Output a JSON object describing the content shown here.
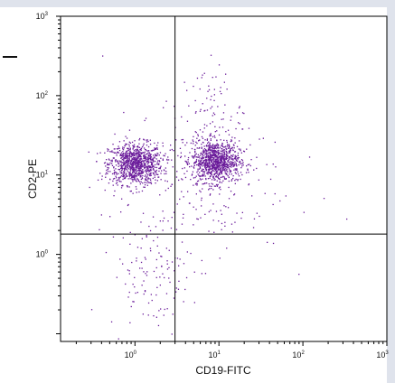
{
  "chart_data": {
    "type": "scatter",
    "xlabel": "CD19-FITC",
    "ylabel": "CD2-PE",
    "x_scale": "log",
    "y_scale": "log",
    "xlim": [
      0.13,
      1000
    ],
    "ylim": [
      0.08,
      1000
    ],
    "x_ticks": [
      {
        "base": "10",
        "exp": "0",
        "value": 1
      },
      {
        "base": "10",
        "exp": "1",
        "value": 10
      },
      {
        "base": "10",
        "exp": "2",
        "value": 100
      },
      {
        "base": "10",
        "exp": "3",
        "value": 1000
      }
    ],
    "y_ticks": [
      {
        "base": "10",
        "exp": "0",
        "value": 1
      },
      {
        "base": "10",
        "exp": "1",
        "value": 10
      },
      {
        "base": "10",
        "exp": "2",
        "value": 100
      },
      {
        "base": "10",
        "exp": "3",
        "value": 1000
      }
    ],
    "quadrant_gate": {
      "x": 3.0,
      "y": 1.8
    },
    "point_color": "#6a1b9a",
    "grid": false,
    "legend": "none",
    "populations": [
      {
        "center_x": 1.0,
        "center_y": 14,
        "spread_log_x": 0.16,
        "spread_log_y": 0.13,
        "count": 950
      },
      {
        "center_x": 9.0,
        "center_y": 15,
        "spread_log_x": 0.14,
        "spread_log_y": 0.13,
        "count": 950
      },
      {
        "center_x": 1.5,
        "center_y": 0.6,
        "spread_log_x": 0.25,
        "spread_log_y": 0.35,
        "count": 120
      },
      {
        "center_x": 8.0,
        "center_y": 60,
        "spread_log_x": 0.18,
        "spread_log_y": 0.3,
        "count": 90
      },
      {
        "center_x": 5.0,
        "center_y": 8,
        "spread_log_x": 0.55,
        "spread_log_y": 0.45,
        "count": 220
      }
    ]
  }
}
